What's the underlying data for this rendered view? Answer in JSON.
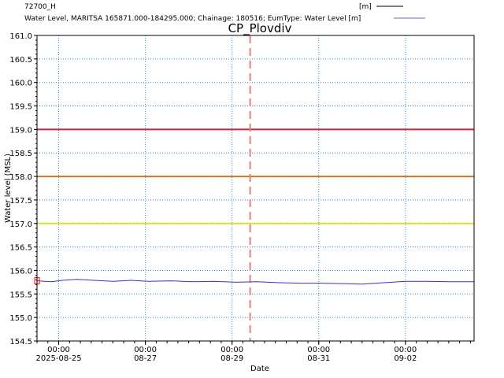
{
  "legend": {
    "entries": [
      {
        "name": "72700_H",
        "unit": "[m]",
        "color": "#000000"
      },
      {
        "name": "Water Level, MARITSA 165871.000-184295.000; Chainage: 180516; EumType: Water Level [m]",
        "unit": "",
        "color": "#6666cc"
      }
    ]
  },
  "chart_data": {
    "type": "line",
    "title": "CP_Plovdiv",
    "xlabel": "Date",
    "ylabel": "Water level (MSL)",
    "xlim": [
      "2025-08-24T12:00",
      "2025-09-03T14:00"
    ],
    "ylim": [
      154.5,
      161.0
    ],
    "grid": true,
    "y_ticks": [
      "161.0",
      "160.5",
      "160.0",
      "159.5",
      "159.0",
      "158.5",
      "158.0",
      "157.5",
      "157.0",
      "156.5",
      "156.0",
      "155.5",
      "155.0",
      "154.5"
    ],
    "x_ticks": [
      {
        "time": "00:00",
        "date": "2025-08-25",
        "at": "2025-08-25T00:00"
      },
      {
        "time": "00:00",
        "date": "08-27",
        "at": "2025-08-27T00:00"
      },
      {
        "time": "00:00",
        "date": "08-29",
        "at": "2025-08-29T00:00"
      },
      {
        "time": "00:00",
        "date": "08-31",
        "at": "2025-08-31T00:00"
      },
      {
        "time": "00:00",
        "date": "09-02",
        "at": "2025-09-02T00:00"
      }
    ],
    "current_time": "2025-08-29T10:00",
    "threshold_lines": [
      {
        "value": 159.0,
        "color": "#c0283c"
      },
      {
        "value": 158.0,
        "color": "#d2781e"
      },
      {
        "value": 157.0,
        "color": "#e6e628"
      }
    ],
    "observed_marker": {
      "x": "2025-08-24T12:00",
      "y": 155.78,
      "color": "#ff0000"
    },
    "series": [
      {
        "name": "Water Level, MARITSA 165871.000-184295.000; Chainage: 180516; EumType: Water Level [m]",
        "color": "#3333cc",
        "points": [
          [
            "2025-08-24T12:00",
            155.78
          ],
          [
            "2025-08-24T20:00",
            155.76
          ],
          [
            "2025-08-25T02:00",
            155.79
          ],
          [
            "2025-08-25T10:00",
            155.81
          ],
          [
            "2025-08-25T20:00",
            155.79
          ],
          [
            "2025-08-26T06:00",
            155.77
          ],
          [
            "2025-08-26T16:00",
            155.79
          ],
          [
            "2025-08-27T02:00",
            155.77
          ],
          [
            "2025-08-27T14:00",
            155.78
          ],
          [
            "2025-08-28T02:00",
            155.76
          ],
          [
            "2025-08-28T14:00",
            155.77
          ],
          [
            "2025-08-29T02:00",
            155.75
          ],
          [
            "2025-08-29T14:00",
            155.76
          ],
          [
            "2025-08-30T02:00",
            155.74
          ],
          [
            "2025-08-30T14:00",
            155.73
          ],
          [
            "2025-08-31T02:00",
            155.73
          ],
          [
            "2025-08-31T14:00",
            155.72
          ],
          [
            "2025-09-01T00:00",
            155.71
          ],
          [
            "2025-09-01T12:00",
            155.74
          ],
          [
            "2025-09-02T00:00",
            155.77
          ],
          [
            "2025-09-02T12:00",
            155.77
          ],
          [
            "2025-09-03T00:00",
            155.76
          ],
          [
            "2025-09-03T14:00",
            155.76
          ]
        ]
      }
    ]
  }
}
